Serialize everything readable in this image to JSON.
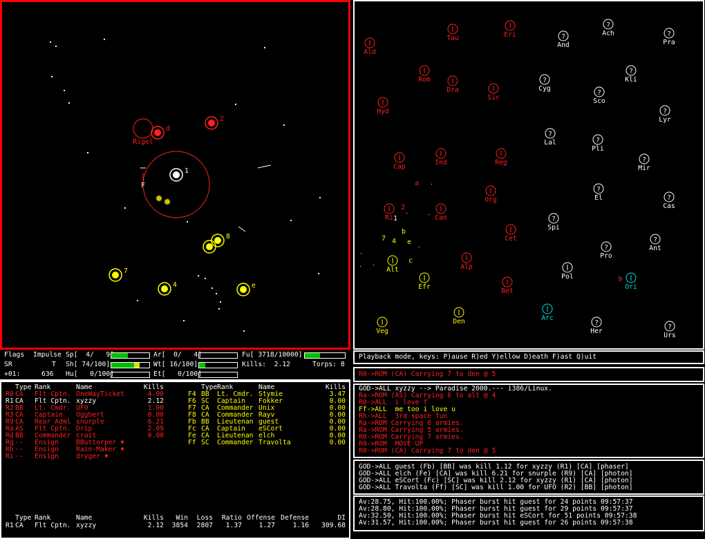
{
  "tactical": {
    "planets": [
      {
        "name": "Rigel",
        "color": "#ff2020"
      }
    ],
    "ships": [
      {
        "label": "d",
        "color": "#ff2020"
      },
      {
        "label": "2",
        "color": "#ff2020"
      },
      {
        "label": "1",
        "color": "#ffffff"
      },
      {
        "label": "8",
        "color": "#ffff00"
      },
      {
        "label": "7",
        "color": "#ffff00"
      },
      {
        "label": "4",
        "color": "#ffff00"
      },
      {
        "label": "e",
        "color": "#ffff00"
      }
    ],
    "marker": "F"
  },
  "galactic": {
    "planets": [
      {
        "name": "Tau",
        "color": "#ff2020"
      },
      {
        "name": "Eri",
        "color": "#ff2020"
      },
      {
        "name": "And",
        "color": "#ffffff",
        "glyph": "?"
      },
      {
        "name": "Ach",
        "color": "#ffffff",
        "glyph": "?"
      },
      {
        "name": "Pra",
        "color": "#ffffff",
        "glyph": "?"
      },
      {
        "name": "Ald",
        "color": "#ff2020"
      },
      {
        "name": "Rom",
        "color": "#ff2020"
      },
      {
        "name": "Dra",
        "color": "#ff2020"
      },
      {
        "name": "Sir",
        "color": "#ff2020"
      },
      {
        "name": "Cyg",
        "color": "#ffffff",
        "glyph": "?"
      },
      {
        "name": "Kli",
        "color": "#ffffff",
        "glyph": "?"
      },
      {
        "name": "Sco",
        "color": "#ffffff",
        "glyph": "?"
      },
      {
        "name": "Hyd",
        "color": "#ff2020"
      },
      {
        "name": "Lyr",
        "color": "#ffffff",
        "glyph": "?"
      },
      {
        "name": "Lal",
        "color": "#ffffff",
        "glyph": "?"
      },
      {
        "name": "Pli",
        "color": "#ffffff",
        "glyph": "?"
      },
      {
        "name": "Cap",
        "color": "#ff2020"
      },
      {
        "name": "Ind",
        "color": "#ff2020"
      },
      {
        "name": "Reg",
        "color": "#ff2020"
      },
      {
        "name": "Mir",
        "color": "#ffffff",
        "glyph": "?"
      },
      {
        "name": "El",
        "color": "#ffffff",
        "glyph": "?"
      },
      {
        "name": "Cas",
        "color": "#ffffff",
        "glyph": "?"
      },
      {
        "name": "Org",
        "color": "#ff2020"
      },
      {
        "name": "Ri",
        "color": "#ff2020"
      },
      {
        "name": "Can",
        "color": "#ff2020"
      },
      {
        "name": "Spi",
        "color": "#ffffff",
        "glyph": "?"
      },
      {
        "name": "Cet",
        "color": "#ff2020"
      },
      {
        "name": "Ant",
        "color": "#ffffff",
        "glyph": "?"
      },
      {
        "name": "Pro",
        "color": "#ffffff",
        "glyph": "?"
      },
      {
        "name": "Alt",
        "color": "#ffff00"
      },
      {
        "name": "Alp",
        "color": "#ff2020"
      },
      {
        "name": "Pol",
        "color": "#ffffff"
      },
      {
        "name": "Efr",
        "color": "#ffff00"
      },
      {
        "name": "Bet",
        "color": "#ff2020"
      },
      {
        "name": "Ori",
        "color": "#00e0e0"
      },
      {
        "name": "Arc",
        "color": "#00e0e0"
      },
      {
        "name": "Den",
        "color": "#ffff00"
      },
      {
        "name": "Her",
        "color": "#ffffff",
        "glyph": "?"
      },
      {
        "name": "Veg",
        "color": "#ffff00"
      },
      {
        "name": "Urs",
        "color": "#ffffff",
        "glyph": "?"
      }
    ],
    "ships": [
      {
        "label": "2",
        "color": "#ff2020"
      },
      {
        "label": "1",
        "color": "#ffffff"
      },
      {
        "label": "a",
        "color": "#ff2020"
      },
      {
        "label": "7",
        "color": "#ffff00"
      },
      {
        "label": "4",
        "color": "#ffff00"
      },
      {
        "label": "e",
        "color": "#ffff00"
      },
      {
        "label": "b",
        "color": "#ffff00"
      },
      {
        "label": "c",
        "color": "#ffff00"
      },
      {
        "label": "9",
        "color": "#ff2020"
      }
    ]
  },
  "status": {
    "items": [
      {
        "text": "Flags"
      },
      {
        "text": "Impulse"
      },
      {
        "text": "Sp[  4/   9]",
        "value": 4,
        "max": 9
      },
      {
        "text": "Ar[  0/   4]",
        "value": 0,
        "max": 4
      },
      {
        "text": "Fu[ 3718/10000]",
        "value": 3718,
        "max": 10000
      },
      {
        "text": "SR"
      },
      {
        "text": "T"
      },
      {
        "text": "Sh[ 74/100]",
        "value": 74,
        "max": 100
      },
      {
        "text": "Wt[ 16/100]",
        "value": 16,
        "max": 100
      },
      {
        "text": "Kills:  2.12"
      },
      {
        "text": "Torps: 8"
      },
      {
        "text": "+01:"
      },
      {
        "text": "636"
      },
      {
        "text": "Hu[   0/100]",
        "value": 0,
        "max": 100
      },
      {
        "text": "Et[   0/100]",
        "value": 0,
        "max": 100
      }
    ]
  },
  "playback": "Playback mode, keys: P)ause R)ed Y)ellow D)eath F)ast Q)uit",
  "messages": {
    "current": [
      {
        "text": "R0->ROM (CA) Carrying 7 to den @ 5",
        "color": "#ff2020"
      }
    ],
    "all": [
      {
        "text": "GOD->ALL xyzzy --> Paradise 2000.--- i386/Linux.",
        "color": "#ffffff"
      },
      {
        "text": "Ra->ROM (AS) Carrying 6 to alt @ 4",
        "color": "#ff2020"
      },
      {
        "text": "R0->ALL  i love f",
        "color": "#ff2020"
      },
      {
        "text": "Ff->ALL  me too i love u",
        "color": "#ffff00"
      },
      {
        "text": "Rh->ALL  3rd space fun",
        "color": "#ff2020"
      },
      {
        "text": "Ra->ROM Carrying 6 armies.",
        "color": "#ff2020"
      },
      {
        "text": "Ra->ROM Carrying 5 armies.",
        "color": "#ff2020"
      },
      {
        "text": "R0->ROM Carrying 7 armies.",
        "color": "#ff2020"
      },
      {
        "text": "R0->ROM  MOVE UP",
        "color": "#ff2020"
      },
      {
        "text": "R0->ROM (CA) Carrying 7 to den @ 5",
        "color": "#ff2020"
      }
    ],
    "kills": [
      {
        "text": "GOD->ALL guest (Fb) [BB] was kill 1.12 for xyzzy (R1) [CA] [phaser]",
        "color": "#ffffff"
      },
      {
        "text": "GOD->ALL elch (Fe) [CA] was kill 6.21 for snurple (R9) [CA] [photon]",
        "color": "#ffffff"
      },
      {
        "text": "GOD->ALL eSCort (Fc) [SC] was kill 2.12 for xyzzy (R1) [CA] [photon]",
        "color": "#ffffff"
      },
      {
        "text": "GOD->ALL Travolta (Ff) [SC] was kill 1.00 for UFO (R2) [BB] [photon]",
        "color": "#ffffff"
      }
    ],
    "phasers": [
      {
        "text": "Av:28.75, Hit:100.00%; Phaser burst hit guest for 24 points 09:57:37",
        "color": "#ffffff"
      },
      {
        "text": "Av:28.80, Hit:100.00%; Phaser burst hit guest for 29 points 09:57:37",
        "color": "#ffffff"
      },
      {
        "text": "Av:32.50, Hit:100.00%; Phaser burst hit eSCort for 51 points 09:57:38",
        "color": "#ffffff"
      },
      {
        "text": "Av:31.57, Hit:100.00%; Phaser burst hit guest for 26 points 09:57:38",
        "color": "#ffffff"
      }
    ]
  },
  "players": {
    "header": [
      "Type",
      "Rank",
      "Name",
      "Kills"
    ],
    "left": [
      {
        "cells": [
          "R0",
          "CA",
          "Flt Cptn.",
          "OneWayTicket",
          "4.00"
        ],
        "color": "#ff2020"
      },
      {
        "cells": [
          "R1",
          "CA",
          "Flt Cptn.",
          "xyzzy",
          "2.12"
        ],
        "color": "#ffffff"
      },
      {
        "cells": [
          "R2",
          "BB",
          "Lt. Cmdr.",
          "UFO",
          "1.00"
        ],
        "color": "#ff2020"
      },
      {
        "cells": [
          "R3",
          "CA",
          "Captain",
          "Oggbert",
          "0.00"
        ],
        "color": "#ff2020"
      },
      {
        "cells": [
          "R9",
          "CA",
          "Rear Adml",
          "snurple",
          "6.21"
        ],
        "color": "#ff2020"
      },
      {
        "cells": [
          "Ra",
          "AS",
          "Flt Cptn.",
          "Drip",
          "2.09"
        ],
        "color": "#ff2020"
      },
      {
        "cells": [
          "Rd",
          "BB",
          "Commander",
          "crait",
          "0.00"
        ],
        "color": "#ff2020"
      },
      {
        "cells": [
          "Rg",
          "--",
          "Ensign",
          "BButtorper ♦",
          ""
        ],
        "color": "#ff2020"
      },
      {
        "cells": [
          "Rh",
          "--",
          "Ensign",
          "Rain-Maker ♦",
          ""
        ],
        "color": "#ff2020"
      },
      {
        "cells": [
          "Ri",
          "--",
          "Ensign",
          "dryger ♦",
          ""
        ],
        "color": "#ff2020"
      }
    ],
    "right": [
      {
        "cells": [
          "F4",
          "BB",
          "Lt. Cmdr.",
          "Stymie",
          "3.47"
        ],
        "color": "#ffff00"
      },
      {
        "cells": [
          "F6",
          "SC",
          "Captain",
          "Fokker",
          "0.00"
        ],
        "color": "#ffff00"
      },
      {
        "cells": [
          "F7",
          "CA",
          "Commander",
          "Unix",
          "0.00"
        ],
        "color": "#ffff00"
      },
      {
        "cells": [
          "F8",
          "CA",
          "Commander",
          "Rayv",
          "0.00"
        ],
        "color": "#ffff00"
      },
      {
        "cells": [
          "Fb",
          "BB",
          "Lieutenan",
          "guest",
          "0.00"
        ],
        "color": "#ffff00"
      },
      {
        "cells": [
          "Fc",
          "CA",
          "Captain",
          "eSCort",
          "0.00"
        ],
        "color": "#ffff00"
      },
      {
        "cells": [
          "Fe",
          "CA",
          "Lieutenan",
          "elch",
          "0.00"
        ],
        "color": "#ffff00"
      },
      {
        "cells": [
          "Ff",
          "SC",
          "Commander",
          "Travolta",
          "0.00"
        ],
        "color": "#ffff00"
      }
    ],
    "stats_header": [
      "Type",
      "Rank",
      "Name",
      "Kills",
      "Win",
      "Loss",
      "Ratio",
      "Offense",
      "Defense",
      "DI"
    ],
    "stats_row": [
      "R1",
      "CA",
      "Flt Cptn.",
      "xyzzy",
      "2.12",
      "3854",
      "2807",
      "1.37",
      "1.27",
      "1.16",
      "309.68"
    ]
  }
}
